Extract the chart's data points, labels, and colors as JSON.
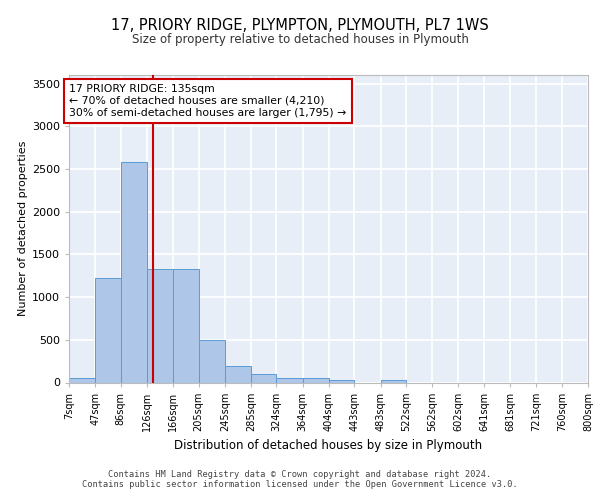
{
  "title_line1": "17, PRIORY RIDGE, PLYMPTON, PLYMOUTH, PL7 1WS",
  "title_line2": "Size of property relative to detached houses in Plymouth",
  "xlabel": "Distribution of detached houses by size in Plymouth",
  "ylabel": "Number of detached properties",
  "footer_line1": "Contains HM Land Registry data © Crown copyright and database right 2024.",
  "footer_line2": "Contains public sector information licensed under the Open Government Licence v3.0.",
  "annotation_line1": "17 PRIORY RIDGE: 135sqm",
  "annotation_line2": "← 70% of detached houses are smaller (4,210)",
  "annotation_line3": "30% of semi-detached houses are larger (1,795) →",
  "property_size": 135,
  "red_line_x": 135,
  "bar_edges": [
    7,
    47,
    86,
    126,
    166,
    205,
    245,
    285,
    324,
    364,
    404,
    443,
    483,
    522,
    562,
    602,
    641,
    681,
    721,
    760,
    800
  ],
  "bar_heights": [
    50,
    1220,
    2580,
    1330,
    1330,
    500,
    190,
    100,
    50,
    50,
    30,
    0,
    30,
    0,
    0,
    0,
    0,
    0,
    0,
    0
  ],
  "bar_color": "#aec6e8",
  "bar_edge_color": "#5b9bd5",
  "red_line_color": "#cc0000",
  "bg_color": "#e8eef8",
  "grid_color": "#ffffff",
  "ylim": [
    0,
    3600
  ],
  "yticks": [
    0,
    500,
    1000,
    1500,
    2000,
    2500,
    3000,
    3500
  ],
  "tick_labels": [
    "7sqm",
    "47sqm",
    "86sqm",
    "126sqm",
    "166sqm",
    "205sqm",
    "245sqm",
    "285sqm",
    "324sqm",
    "364sqm",
    "404sqm",
    "443sqm",
    "483sqm",
    "522sqm",
    "562sqm",
    "602sqm",
    "641sqm",
    "681sqm",
    "721sqm",
    "760sqm",
    "800sqm"
  ]
}
